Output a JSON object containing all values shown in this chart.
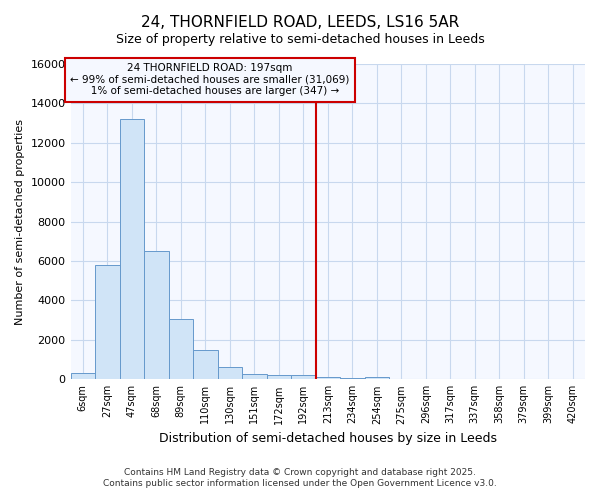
{
  "title": "24, THORNFIELD ROAD, LEEDS, LS16 5AR",
  "subtitle": "Size of property relative to semi-detached houses in Leeds",
  "xlabel": "Distribution of semi-detached houses by size in Leeds",
  "ylabel": "Number of semi-detached properties",
  "categories": [
    "6sqm",
    "27sqm",
    "47sqm",
    "68sqm",
    "89sqm",
    "110sqm",
    "130sqm",
    "151sqm",
    "172sqm",
    "192sqm",
    "213sqm",
    "234sqm",
    "254sqm",
    "275sqm",
    "296sqm",
    "317sqm",
    "337sqm",
    "358sqm",
    "379sqm",
    "399sqm",
    "420sqm"
  ],
  "values": [
    300,
    5800,
    13200,
    6500,
    3050,
    1480,
    620,
    280,
    200,
    230,
    110,
    50,
    100,
    30,
    20,
    10,
    5,
    5,
    5,
    5,
    0
  ],
  "bar_color": "#d0e4f7",
  "bar_edge_color": "#6699cc",
  "vline_x_label": "192sqm",
  "vline_x_index": 9,
  "smaller_pct": "99%",
  "smaller_n": "31,069",
  "larger_pct": "1%",
  "larger_n": "347",
  "annotation_box_color": "#cc0000",
  "ylim": [
    0,
    16000
  ],
  "yticks": [
    0,
    2000,
    4000,
    6000,
    8000,
    10000,
    12000,
    14000,
    16000
  ],
  "footer1": "Contains HM Land Registry data © Crown copyright and database right 2025.",
  "footer2": "Contains public sector information licensed under the Open Government Licence v3.0.",
  "bg_color": "#ffffff",
  "plot_bg_color": "#f5f8ff",
  "grid_color": "#c8d8ee"
}
